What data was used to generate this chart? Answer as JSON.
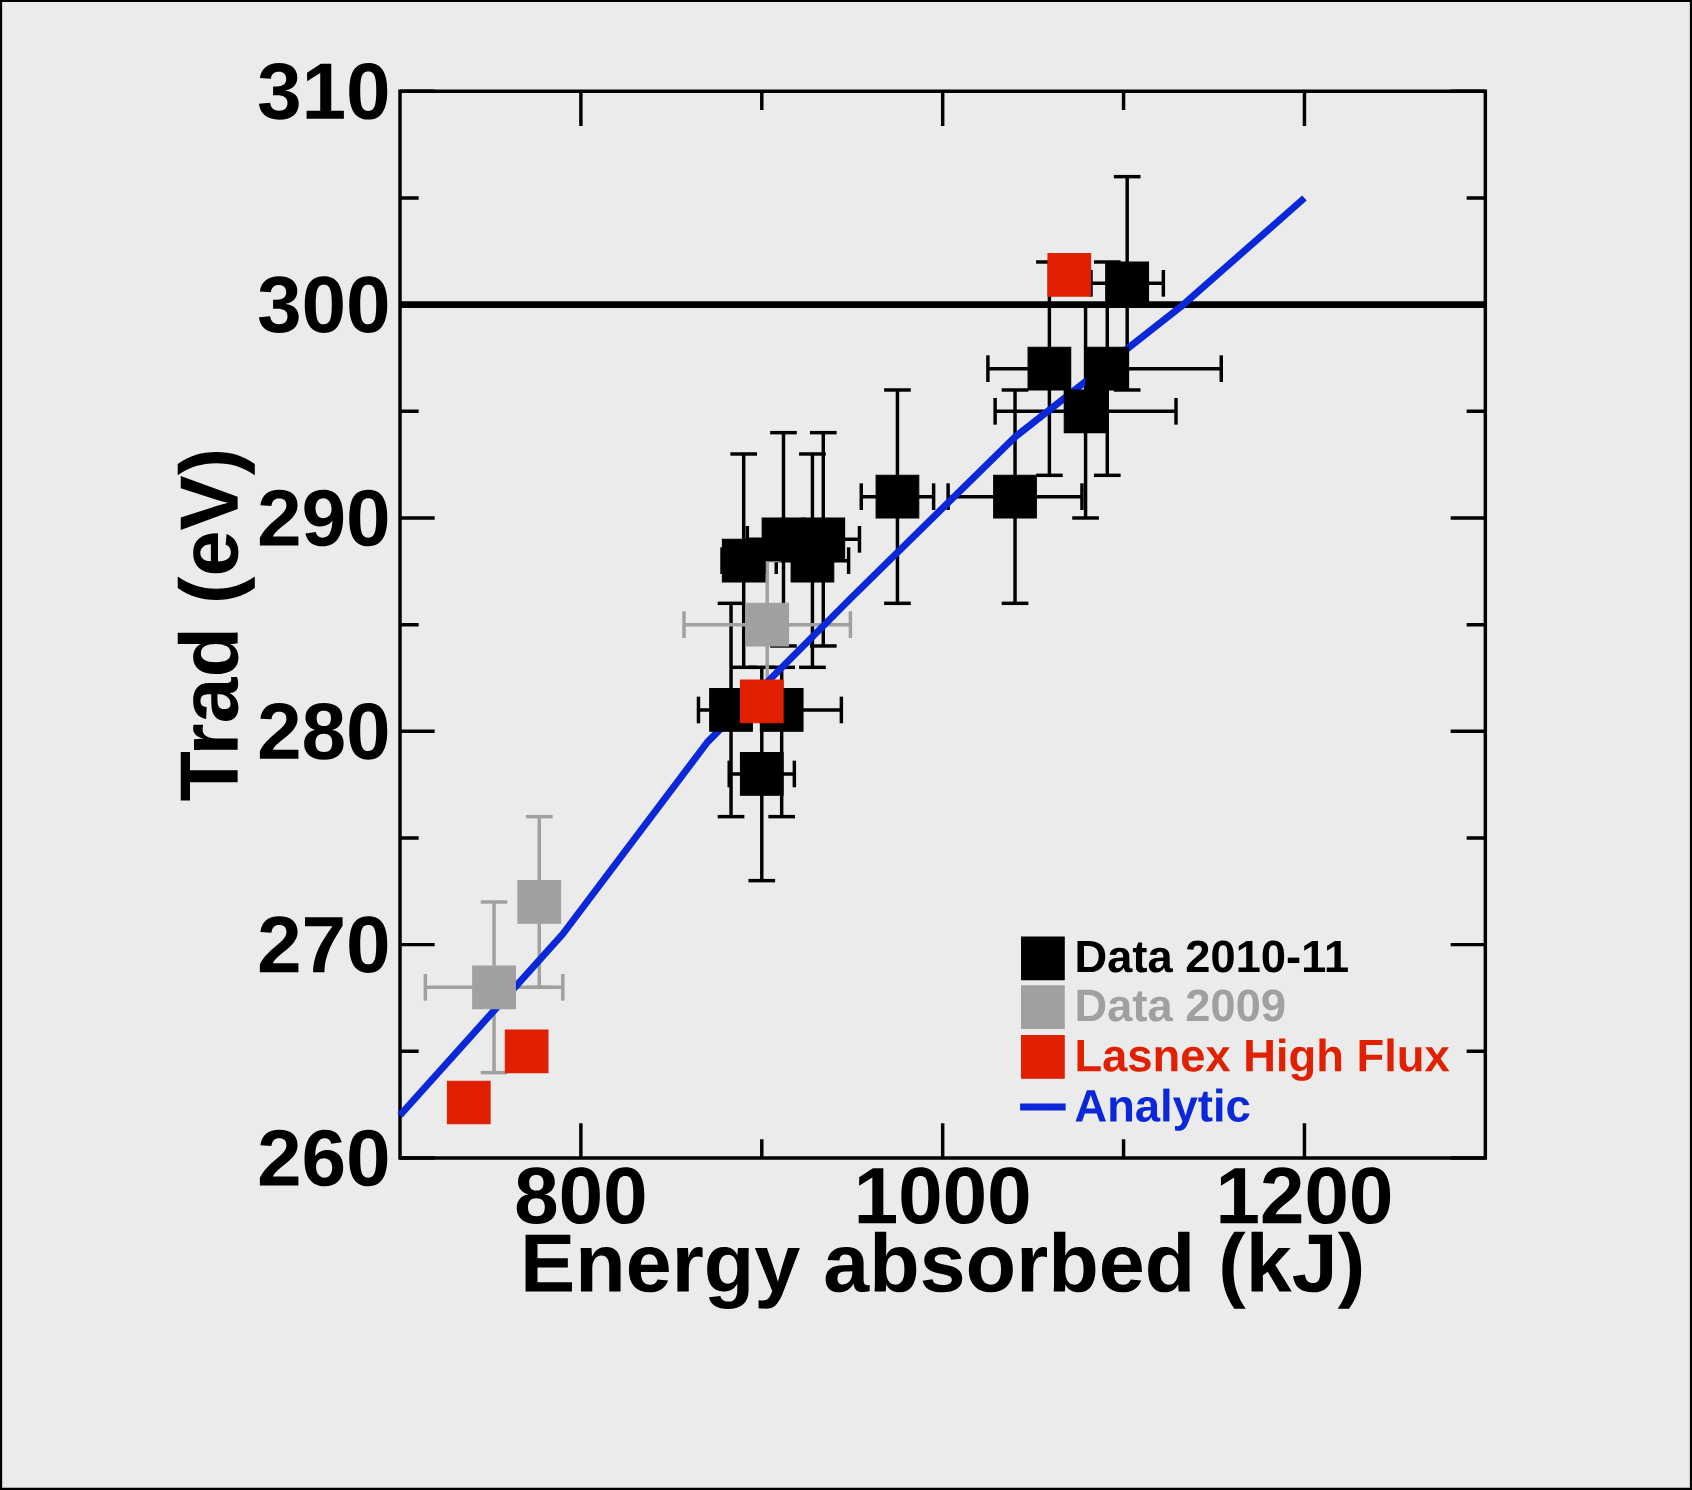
{
  "chart_data": {
    "type": "scatter",
    "xlabel": "Energy absorbed (kJ)",
    "ylabel": "Trad (eV)",
    "xlim": [
      700,
      1300
    ],
    "ylim": [
      260,
      310
    ],
    "xticks": [
      800,
      {
        "value": 900,
        "label": null
      },
      1000,
      {
        "value": 1100,
        "label": null
      },
      1200
    ],
    "yticks": [
      260,
      {
        "value": 265,
        "label": null
      },
      270,
      {
        "value": 275,
        "label": null
      },
      280,
      {
        "value": 285,
        "label": null
      },
      290,
      {
        "value": 295,
        "label": null
      },
      300,
      {
        "value": 305,
        "label": null
      },
      310
    ],
    "marker": "square",
    "legend": "bottom right",
    "ref_lines": [
      {
        "axis": "y",
        "value": 300,
        "color": "#000000"
      }
    ],
    "series": [
      {
        "name": "Data 2010-11",
        "color": "#000000",
        "x": [
          1102,
          1059,
          1091,
          1079,
          1040,
          975,
          890,
          912,
          928,
          934,
          883,
          911,
          900
        ],
        "values": [
          301,
          297,
          297,
          295,
          291,
          291,
          288,
          289,
          288,
          289,
          281,
          281,
          278
        ],
        "errors": [
          5,
          5,
          5,
          5,
          5,
          5,
          5,
          [
            284,
            294
          ],
          5,
          5,
          5,
          [
            276,
            283
          ],
          5
        ],
        "xerrors": [
          20,
          [
            1025,
            1059
          ],
          [
            1091,
            1154
          ],
          50,
          37,
          20,
          12,
          [
            892,
            912
          ],
          20,
          [
            934,
            954
          ],
          [
            865,
            883
          ],
          [
            911,
            944
          ],
          18
        ]
      },
      {
        "name": "Data 2009",
        "color": "#a0a0a0",
        "x": [
          903,
          777,
          752
        ],
        "values": [
          285,
          272,
          268
        ],
        "errors": [
          3,
          4,
          4
        ],
        "xerrors": [
          46,
          8,
          38
        ]
      },
      {
        "name": "Lasnex High Flux",
        "color": "#e02000",
        "x": [
          1070,
          900,
          770,
          738
        ],
        "values": [
          301.4,
          281.4,
          265,
          262.6
        ]
      },
      {
        "name": "Analytic",
        "type": "line",
        "color": "#0a28d8",
        "marker": "none",
        "x": [
          700,
          790,
          870,
          950,
          1040,
          1133,
          1200
        ],
        "values": [
          262,
          270.5,
          279.5,
          286.3,
          293.8,
          300,
          305
        ]
      }
    ]
  }
}
